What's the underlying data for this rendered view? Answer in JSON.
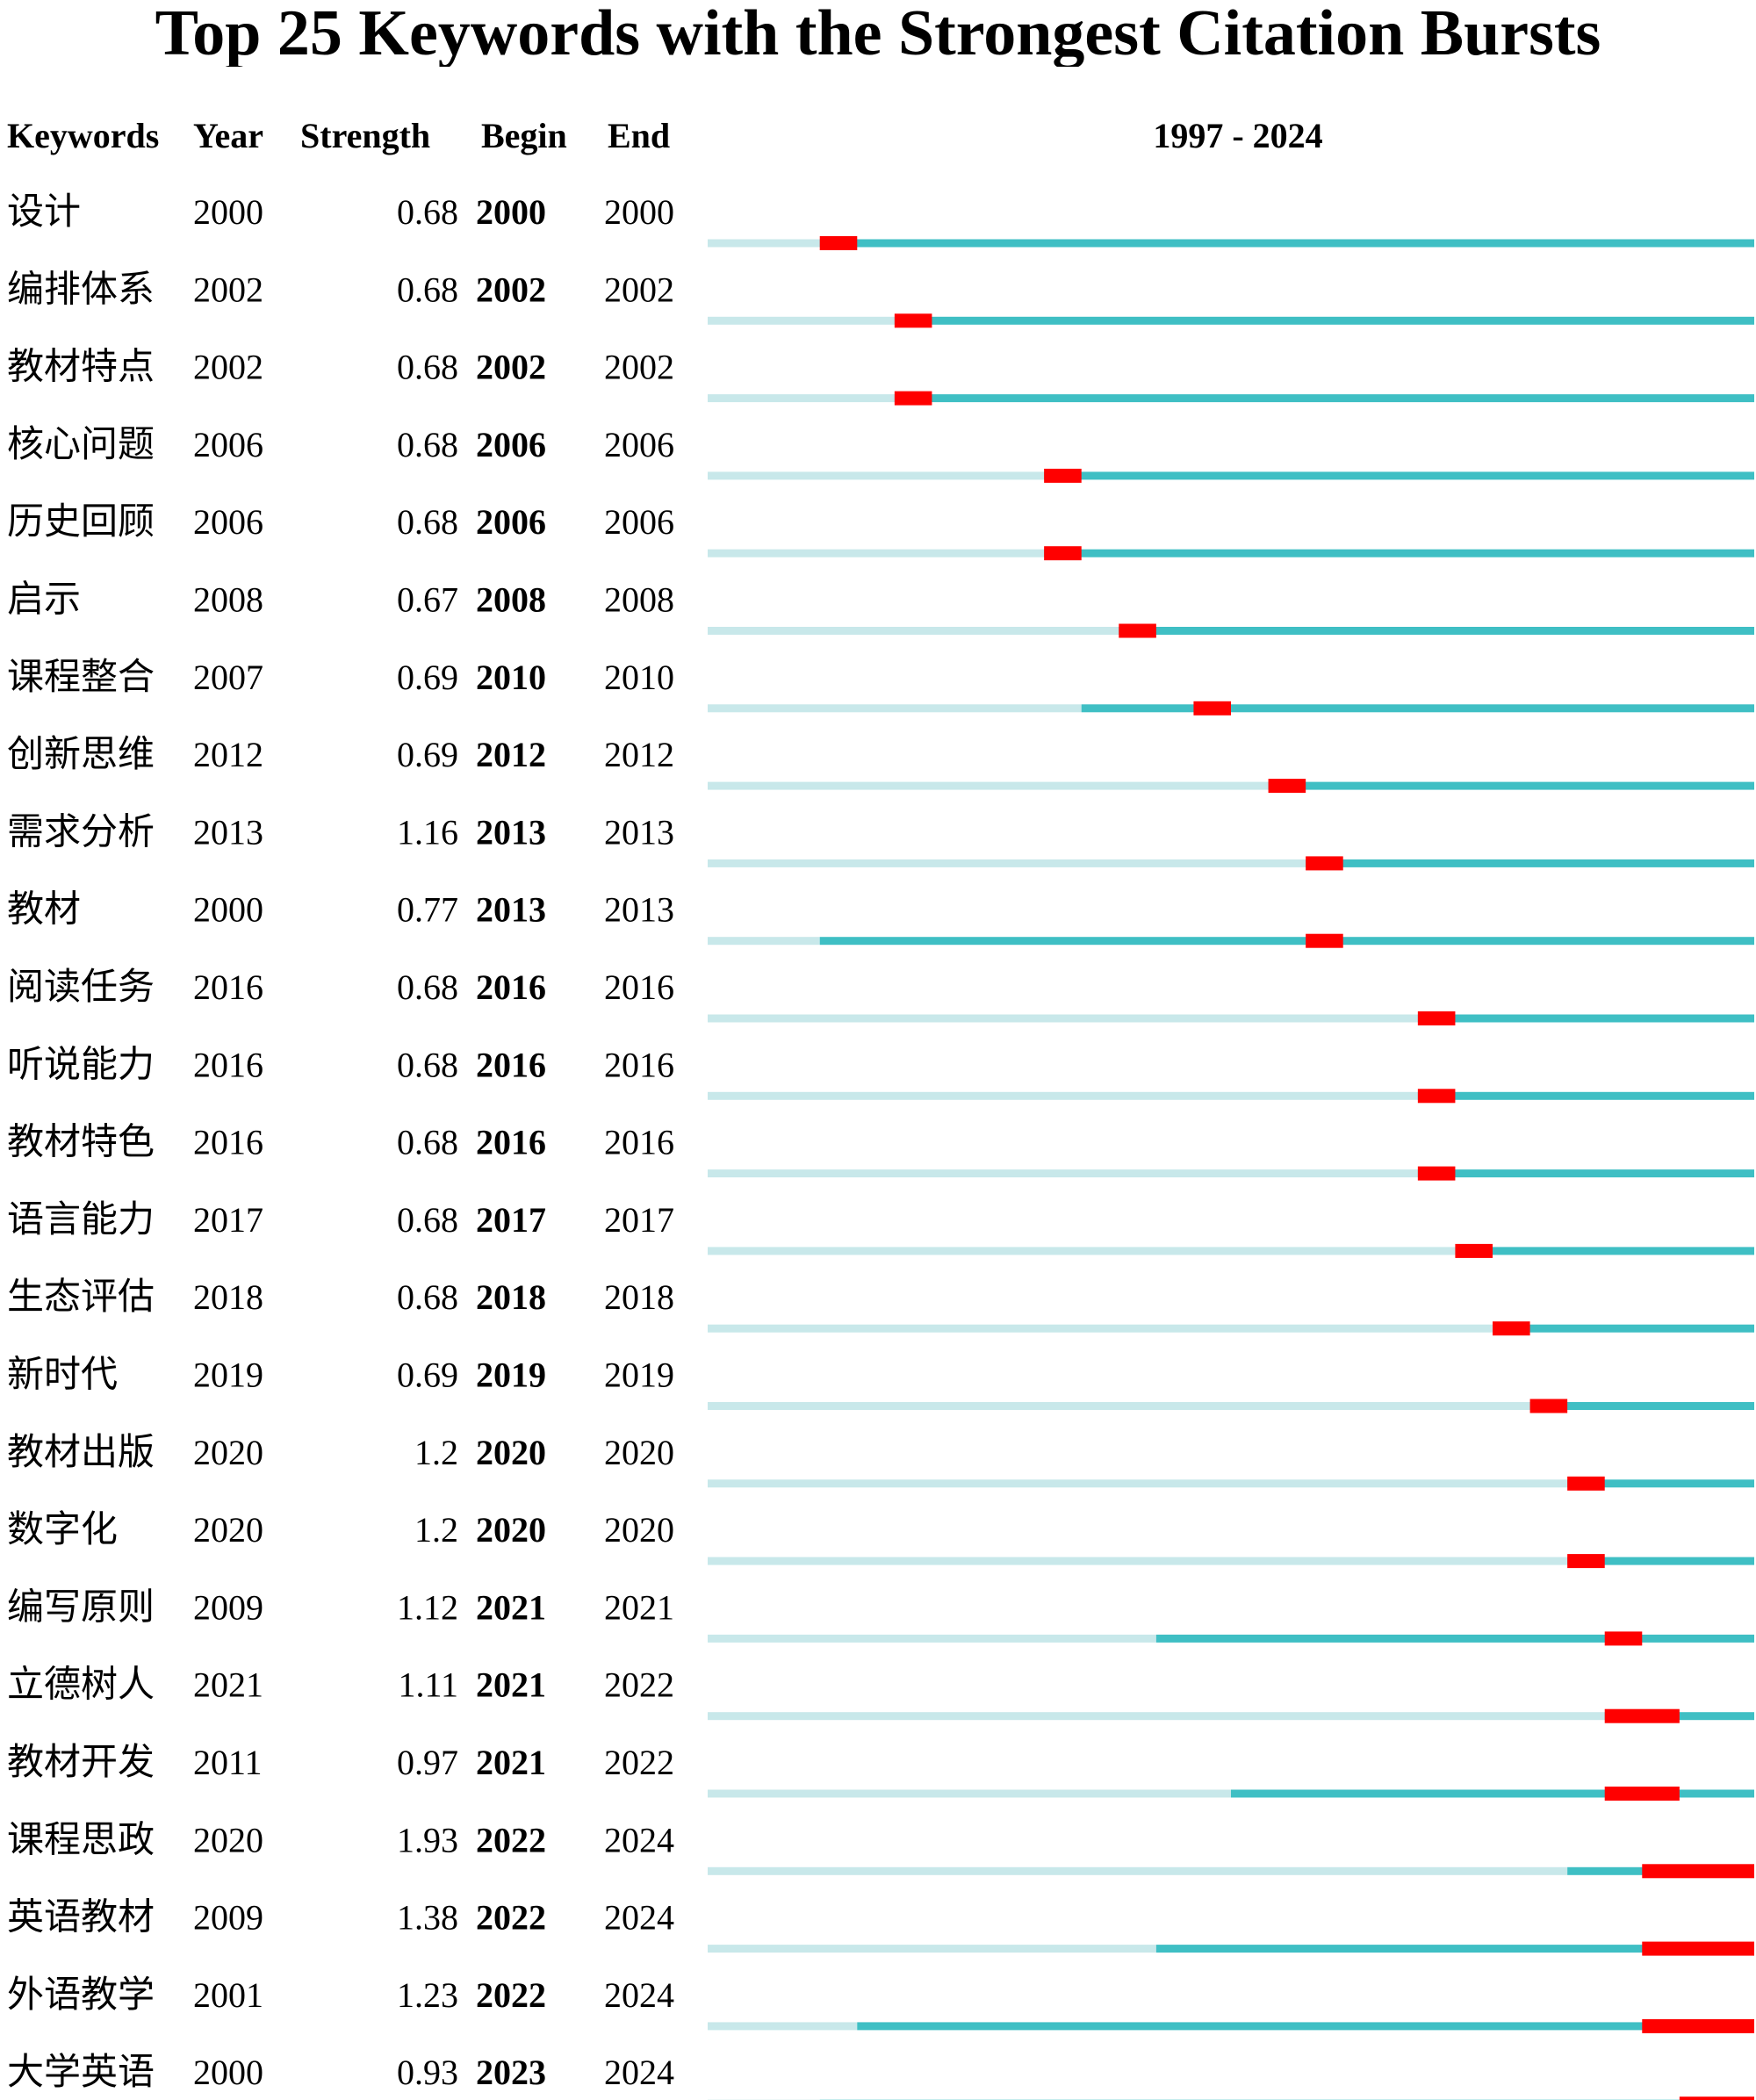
{
  "chart_data": {
    "type": "table",
    "title": "Top 25 Keywords with the Strongest Citation Bursts",
    "columns": [
      "Keywords",
      "Year",
      "Strength",
      "Begin",
      "End"
    ],
    "timeline_label": "1997 - 2024",
    "timeline_range": [
      1997,
      2024
    ],
    "colors": {
      "burst": "#ff0000",
      "active": "#3fbfc4",
      "inactive": "#c8e8ea",
      "text": "#000000"
    },
    "rows": [
      {
        "keyword": "设计",
        "year": "2000",
        "strength": "0.68",
        "begin": "2000",
        "end": "2000"
      },
      {
        "keyword": "编排体系",
        "year": "2002",
        "strength": "0.68",
        "begin": "2002",
        "end": "2002"
      },
      {
        "keyword": "教材特点",
        "year": "2002",
        "strength": "0.68",
        "begin": "2002",
        "end": "2002"
      },
      {
        "keyword": "核心问题",
        "year": "2006",
        "strength": "0.68",
        "begin": "2006",
        "end": "2006"
      },
      {
        "keyword": "历史回顾",
        "year": "2006",
        "strength": "0.68",
        "begin": "2006",
        "end": "2006"
      },
      {
        "keyword": "启示",
        "year": "2008",
        "strength": "0.67",
        "begin": "2008",
        "end": "2008"
      },
      {
        "keyword": "课程整合",
        "year": "2007",
        "strength": "0.69",
        "begin": "2010",
        "end": "2010"
      },
      {
        "keyword": "创新思维",
        "year": "2012",
        "strength": "0.69",
        "begin": "2012",
        "end": "2012"
      },
      {
        "keyword": "需求分析",
        "year": "2013",
        "strength": "1.16",
        "begin": "2013",
        "end": "2013"
      },
      {
        "keyword": "教材",
        "year": "2000",
        "strength": "0.77",
        "begin": "2013",
        "end": "2013"
      },
      {
        "keyword": "阅读任务",
        "year": "2016",
        "strength": "0.68",
        "begin": "2016",
        "end": "2016"
      },
      {
        "keyword": "听说能力",
        "year": "2016",
        "strength": "0.68",
        "begin": "2016",
        "end": "2016"
      },
      {
        "keyword": "教材特色",
        "year": "2016",
        "strength": "0.68",
        "begin": "2016",
        "end": "2016"
      },
      {
        "keyword": "语言能力",
        "year": "2017",
        "strength": "0.68",
        "begin": "2017",
        "end": "2017"
      },
      {
        "keyword": "生态评估",
        "year": "2018",
        "strength": "0.68",
        "begin": "2018",
        "end": "2018"
      },
      {
        "keyword": "新时代",
        "year": "2019",
        "strength": "0.69",
        "begin": "2019",
        "end": "2019"
      },
      {
        "keyword": "教材出版",
        "year": "2020",
        "strength": "1.2",
        "begin": "2020",
        "end": "2020"
      },
      {
        "keyword": "数字化",
        "year": "2020",
        "strength": "1.2",
        "begin": "2020",
        "end": "2020"
      },
      {
        "keyword": "编写原则",
        "year": "2009",
        "strength": "1.12",
        "begin": "2021",
        "end": "2021"
      },
      {
        "keyword": "立德树人",
        "year": "2021",
        "strength": "1.11",
        "begin": "2021",
        "end": "2022"
      },
      {
        "keyword": "教材开发",
        "year": "2011",
        "strength": "0.97",
        "begin": "2021",
        "end": "2022"
      },
      {
        "keyword": "课程思政",
        "year": "2020",
        "strength": "1.93",
        "begin": "2022",
        "end": "2024"
      },
      {
        "keyword": "英语教材",
        "year": "2009",
        "strength": "1.38",
        "begin": "2022",
        "end": "2024"
      },
      {
        "keyword": "外语教学",
        "year": "2001",
        "strength": "1.23",
        "begin": "2022",
        "end": "2024"
      },
      {
        "keyword": "大学英语",
        "year": "2000",
        "strength": "0.93",
        "begin": "2023",
        "end": "2024"
      }
    ]
  }
}
